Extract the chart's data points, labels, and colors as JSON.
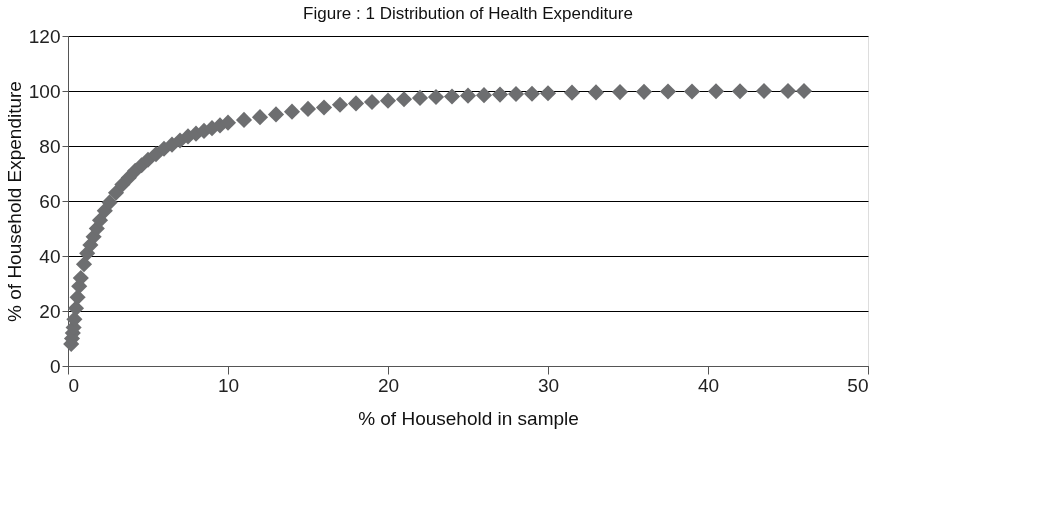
{
  "chart_data": {
    "type": "scatter",
    "title": "Figure : 1 Distribution of Health Expenditure",
    "xlabel": "% of Household in sample",
    "ylabel": "% of Household Expenditure",
    "x": [
      0.2,
      0.25,
      0.3,
      0.35,
      0.4,
      0.5,
      0.6,
      0.7,
      0.8,
      1,
      1.2,
      1.4,
      1.6,
      1.8,
      2,
      2.3,
      2.6,
      3,
      3.4,
      3.8,
      4.2,
      4.6,
      5,
      5.5,
      6,
      6.5,
      7,
      7.5,
      8,
      8.5,
      9,
      9.5,
      10,
      11,
      12,
      13,
      14,
      15,
      16,
      17,
      18,
      19,
      20,
      21,
      22,
      23,
      24,
      25,
      26,
      27,
      28,
      29,
      30,
      31.5,
      33,
      34.5,
      36,
      37.5,
      39,
      40.5,
      42,
      43.5,
      45,
      46
    ],
    "series": [
      {
        "color": "#6d6e70",
        "values": [
          8,
          10,
          12,
          14,
          17,
          21,
          25,
          29,
          32,
          37,
          41,
          44,
          47,
          50,
          53,
          56.5,
          59.5,
          63,
          66,
          68.5,
          71,
          73,
          75,
          77,
          79,
          80.5,
          82,
          83.5,
          84.5,
          85.5,
          86.5,
          87.5,
          88.5,
          89.5,
          90.5,
          91.5,
          92.5,
          93.5,
          94,
          95,
          95.5,
          96,
          96.5,
          97,
          97.5,
          97.8,
          98,
          98.3,
          98.5,
          98.7,
          98.9,
          99,
          99.2,
          99.4,
          99.5,
          99.6,
          99.7,
          99.8,
          99.8,
          99.9,
          99.9,
          100,
          100,
          100
        ]
      }
    ],
    "xlim": [
      0,
      50
    ],
    "xticks": [
      0,
      10,
      20,
      30,
      40,
      50
    ],
    "ylim": [
      0,
      120
    ],
    "yticks": [
      0,
      20,
      40,
      60,
      80,
      100,
      120
    ],
    "grid": "y",
    "marker": "diamond"
  }
}
